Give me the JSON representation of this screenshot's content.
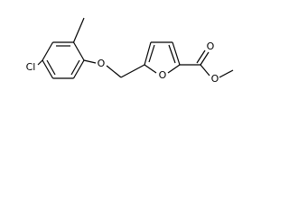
{
  "atoms": [
    {
      "label": "Cl"
    },
    {
      "label": "O"
    },
    {
      "label": "O"
    },
    {
      "label": "O"
    },
    {
      "label": "O"
    }
  ]
}
